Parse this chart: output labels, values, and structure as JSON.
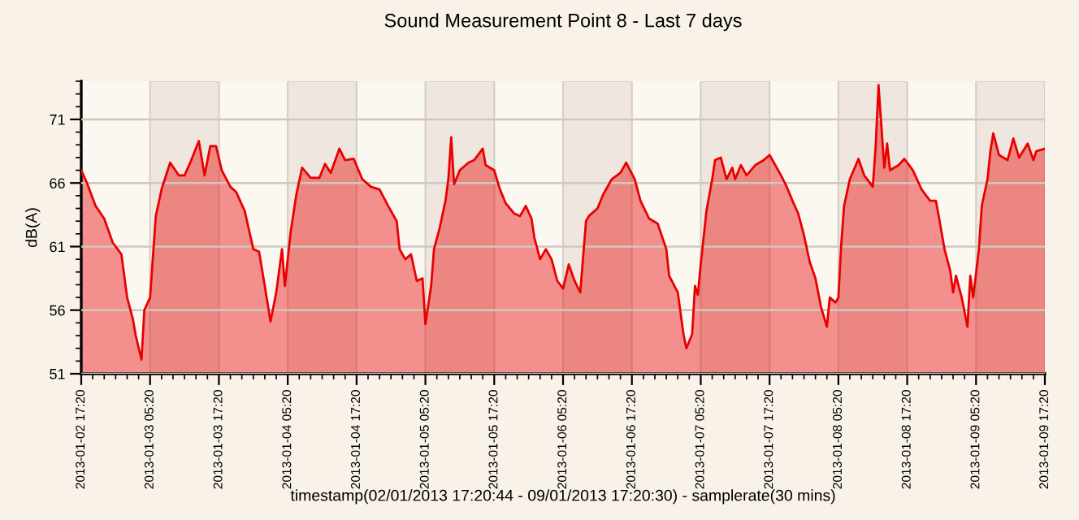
{
  "chart_data": {
    "type": "area",
    "title": "Sound Measurement Point 8 - Last 7 days",
    "ylabel": "dB(A)",
    "xlabel": "timestamp(02/01/2013 17:20:44 - 09/01/2013 17:20:30) - samplerate(30 mins)",
    "x": [
      "2013-01-02T17:20",
      "2013-01-02T18:20",
      "2013-01-02T19:50",
      "2013-01-02T21:20",
      "2013-01-02T22:50",
      "2013-01-03T00:20",
      "2013-01-03T01:20",
      "2013-01-03T02:20",
      "2013-01-03T02:50",
      "2013-01-03T03:50",
      "2013-01-03T04:20",
      "2013-01-03T05:20",
      "2013-01-03T06:20",
      "2013-01-03T07:20",
      "2013-01-03T08:50",
      "2013-01-03T10:20",
      "2013-01-03T11:20",
      "2013-01-03T12:20",
      "2013-01-03T13:50",
      "2013-01-03T14:50",
      "2013-01-03T15:50",
      "2013-01-03T16:50",
      "2013-01-03T17:50",
      "2013-01-03T19:20",
      "2013-01-03T20:20",
      "2013-01-03T21:50",
      "2013-01-03T23:20",
      "2013-01-04T00:20",
      "2013-01-04T01:20",
      "2013-01-04T02:20",
      "2013-01-04T03:20",
      "2013-01-04T04:20",
      "2013-01-04T04:50",
      "2013-01-04T05:50",
      "2013-01-04T06:50",
      "2013-01-04T07:50",
      "2013-01-04T09:20",
      "2013-01-04T10:50",
      "2013-01-04T11:50",
      "2013-01-04T12:50",
      "2013-01-04T14:20",
      "2013-01-04T15:20",
      "2013-01-04T16:50",
      "2013-01-04T18:20",
      "2013-01-04T19:50",
      "2013-01-04T21:20",
      "2013-01-04T22:50",
      "2013-01-05T00:20",
      "2013-01-05T00:50",
      "2013-01-05T01:50",
      "2013-01-05T02:50",
      "2013-01-05T03:50",
      "2013-01-05T04:50",
      "2013-01-05T05:20",
      "2013-01-05T06:20",
      "2013-01-05T06:50",
      "2013-01-05T07:50",
      "2013-01-05T08:50",
      "2013-01-05T09:20",
      "2013-01-05T09:50",
      "2013-01-05T10:20",
      "2013-01-05T11:20",
      "2013-01-05T12:50",
      "2013-01-05T13:50",
      "2013-01-05T15:20",
      "2013-01-05T15:50",
      "2013-01-05T17:20",
      "2013-01-05T18:20",
      "2013-01-05T19:20",
      "2013-01-05T20:50",
      "2013-01-05T21:50",
      "2013-01-05T22:50",
      "2013-01-05T23:50",
      "2013-01-06T00:20",
      "2013-01-06T01:20",
      "2013-01-06T02:20",
      "2013-01-06T03:20",
      "2013-01-06T04:20",
      "2013-01-06T05:20",
      "2013-01-06T06:20",
      "2013-01-06T07:20",
      "2013-01-06T08:20",
      "2013-01-06T09:20",
      "2013-01-06T09:50",
      "2013-01-06T11:20",
      "2013-01-06T12:20",
      "2013-01-06T13:50",
      "2013-01-06T15:20",
      "2013-01-06T16:20",
      "2013-01-06T17:50",
      "2013-01-06T18:50",
      "2013-01-06T20:20",
      "2013-01-06T21:50",
      "2013-01-06T23:20",
      "2013-01-06T23:50",
      "2013-01-07T01:20",
      "2013-01-07T02:20",
      "2013-01-07T02:50",
      "2013-01-07T03:50",
      "2013-01-07T04:20",
      "2013-01-07T04:50",
      "2013-01-07T05:20",
      "2013-01-07T06:20",
      "2013-01-07T07:20",
      "2013-01-07T07:50",
      "2013-01-07T08:50",
      "2013-01-07T09:50",
      "2013-01-07T10:50",
      "2013-01-07T11:20",
      "2013-01-07T12:20",
      "2013-01-07T13:20",
      "2013-01-07T14:50",
      "2013-01-07T16:20",
      "2013-01-07T17:20",
      "2013-01-07T18:20",
      "2013-01-07T19:20",
      "2013-01-07T20:20",
      "2013-01-07T21:20",
      "2013-01-07T22:20",
      "2013-01-07T23:20",
      "2013-01-08T00:20",
      "2013-01-08T01:20",
      "2013-01-08T02:20",
      "2013-01-08T03:20",
      "2013-01-08T03:50",
      "2013-01-08T04:50",
      "2013-01-08T05:20",
      "2013-01-08T05:50",
      "2013-01-08T06:20",
      "2013-01-08T07:20",
      "2013-01-08T08:50",
      "2013-01-08T09:50",
      "2013-01-08T11:20",
      "2013-01-08T11:50",
      "2013-01-08T12:20",
      "2013-01-08T13:20",
      "2013-01-08T13:50",
      "2013-01-08T14:20",
      "2013-01-08T15:50",
      "2013-01-08T16:50",
      "2013-01-08T18:20",
      "2013-01-08T19:50",
      "2013-01-08T21:20",
      "2013-01-08T22:20",
      "2013-01-08T22:50",
      "2013-01-08T23:50",
      "2013-01-09T00:50",
      "2013-01-09T01:20",
      "2013-01-09T01:50",
      "2013-01-09T02:50",
      "2013-01-09T03:50",
      "2013-01-09T04:20",
      "2013-01-09T04:50",
      "2013-01-09T05:50",
      "2013-01-09T06:20",
      "2013-01-09T07:20",
      "2013-01-09T07:50",
      "2013-01-09T08:20",
      "2013-01-09T09:20",
      "2013-01-09T10:50",
      "2013-01-09T11:50",
      "2013-01-09T12:50",
      "2013-01-09T14:20",
      "2013-01-09T15:20",
      "2013-01-09T15:50",
      "2013-01-09T17:20"
    ],
    "series": [
      {
        "color": "#e80000",
        "values": [
          67.0,
          66.0,
          64.2,
          63.2,
          61.3,
          60.4,
          57.0,
          55.3,
          54.0,
          52.1,
          56.0,
          57.0,
          63.4,
          65.5,
          67.6,
          66.6,
          66.6,
          67.6,
          69.3,
          66.6,
          68.9,
          68.9,
          67.0,
          65.7,
          65.3,
          63.8,
          60.8,
          60.6,
          57.9,
          55.1,
          57.4,
          60.8,
          57.9,
          62.1,
          65.1,
          67.2,
          66.4,
          66.4,
          67.5,
          66.8,
          68.7,
          67.8,
          67.9,
          66.3,
          65.7,
          65.5,
          64.2,
          63.0,
          60.8,
          60.0,
          60.4,
          58.3,
          58.5,
          54.9,
          57.9,
          60.8,
          62.5,
          64.6,
          66.3,
          69.6,
          65.9,
          67.0,
          67.6,
          67.8,
          68.7,
          67.4,
          67.0,
          65.5,
          64.4,
          63.6,
          63.4,
          64.2,
          63.2,
          61.7,
          60.0,
          60.8,
          60.0,
          58.3,
          57.7,
          59.6,
          58.3,
          57.4,
          63.0,
          63.4,
          64.0,
          65.1,
          66.3,
          66.8,
          67.6,
          66.3,
          64.6,
          63.2,
          62.8,
          60.8,
          58.7,
          57.4,
          54.1,
          53.0,
          54.1,
          57.9,
          57.2,
          59.6,
          63.8,
          66.3,
          67.8,
          68.0,
          66.3,
          67.2,
          66.3,
          67.4,
          66.6,
          67.4,
          67.8,
          68.2,
          67.4,
          66.6,
          65.7,
          64.6,
          63.6,
          61.9,
          59.8,
          58.5,
          56.2,
          54.7,
          57.0,
          56.6,
          57.0,
          61.2,
          64.2,
          66.3,
          67.9,
          66.6,
          65.7,
          68.9,
          73.7,
          67.2,
          69.1,
          67.0,
          67.4,
          67.9,
          67.0,
          65.5,
          64.6,
          64.6,
          63.4,
          60.8,
          59.1,
          57.4,
          58.7,
          57.0,
          54.7,
          58.7,
          57.0,
          60.8,
          64.2,
          66.3,
          68.5,
          69.9,
          68.2,
          67.8,
          69.5,
          68.0,
          69.1,
          67.8,
          68.5,
          68.7
        ]
      }
    ],
    "xlim": [
      "2013-01-02T17:20",
      "2013-01-09T17:20"
    ],
    "xticks": [
      {
        "value": "2013-01-02T17:20",
        "label": "2013-01-02 17:20"
      },
      {
        "value": "2013-01-03T05:20",
        "label": "2013-01-03 05:20"
      },
      {
        "value": "2013-01-03T17:20",
        "label": "2013-01-03 17:20"
      },
      {
        "value": "2013-01-04T05:20",
        "label": "2013-01-04 05:20"
      },
      {
        "value": "2013-01-04T17:20",
        "label": "2013-01-04 17:20"
      },
      {
        "value": "2013-01-05T05:20",
        "label": "2013-01-05 05:20"
      },
      {
        "value": "2013-01-05T17:20",
        "label": "2013-01-05 17:20"
      },
      {
        "value": "2013-01-06T05:20",
        "label": "2013-01-06 05:20"
      },
      {
        "value": "2013-01-06T17:20",
        "label": "2013-01-06 17:20"
      },
      {
        "value": "2013-01-07T05:20",
        "label": "2013-01-07 05:20"
      },
      {
        "value": "2013-01-07T17:20",
        "label": "2013-01-07 17:20"
      },
      {
        "value": "2013-01-08T05:20",
        "label": "2013-01-08 05:20"
      },
      {
        "value": "2013-01-08T17:20",
        "label": "2013-01-08 17:20"
      },
      {
        "value": "2013-01-09T05:20",
        "label": "2013-01-09 05:20"
      },
      {
        "value": "2013-01-09T17:20",
        "label": "2013-01-09 17:20"
      }
    ],
    "ylim": [
      51,
      74
    ],
    "yticks": [
      51,
      56,
      61,
      66,
      71
    ],
    "grid": "y",
    "bands": [
      {
        "axis": "x",
        "from": "2013-01-03T05:20",
        "to": "2013-01-03T17:20",
        "color": "#efe7df"
      },
      {
        "axis": "x",
        "from": "2013-01-04T05:20",
        "to": "2013-01-04T17:20",
        "color": "#efe7df"
      },
      {
        "axis": "x",
        "from": "2013-01-05T05:20",
        "to": "2013-01-05T17:20",
        "color": "#efe7df"
      },
      {
        "axis": "x",
        "from": "2013-01-06T05:20",
        "to": "2013-01-06T17:20",
        "color": "#efe7df"
      },
      {
        "axis": "x",
        "from": "2013-01-07T05:20",
        "to": "2013-01-07T17:20",
        "color": "#efe7df"
      },
      {
        "axis": "x",
        "from": "2013-01-08T05:20",
        "to": "2013-01-08T17:20",
        "color": "#efe7df"
      },
      {
        "axis": "x",
        "from": "2013-01-09T05:20",
        "to": "2013-01-09T17:20",
        "color": "#efe7df"
      }
    ]
  }
}
